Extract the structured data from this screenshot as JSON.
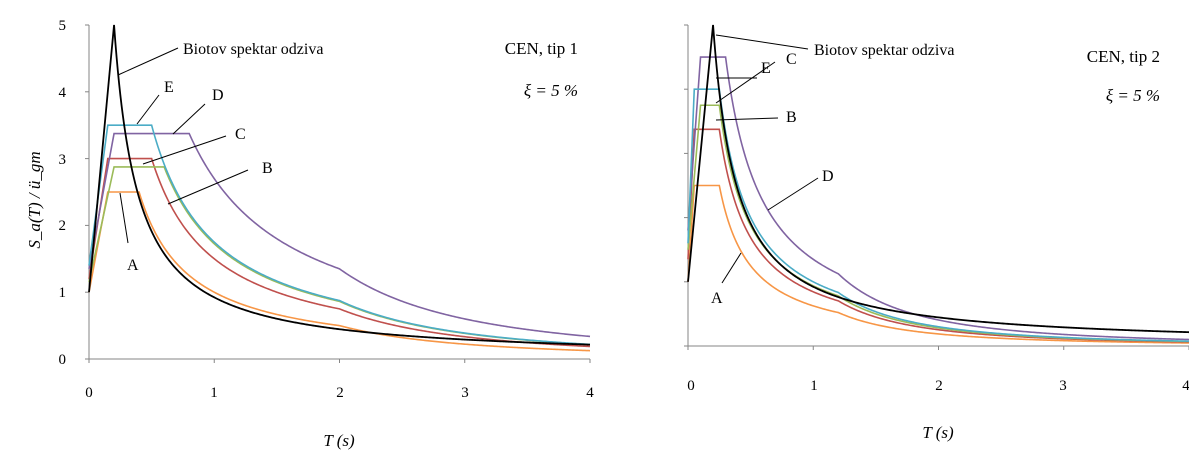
{
  "chart_data": [
    {
      "type": "line",
      "ylabel": "S_a(T) / ü_gm",
      "xlabel": "T (s)",
      "xlim": [
        0,
        4
      ],
      "ylim": [
        0,
        5
      ],
      "x_ticks": [
        "0",
        "1",
        "2",
        "3",
        "4"
      ],
      "y_ticks": [
        "0",
        "1",
        "2",
        "3",
        "4",
        "5"
      ],
      "grid": false,
      "info": [
        "CEN, tip 1",
        "ξ = 5 %"
      ],
      "series": [
        {
          "name": "A",
          "color": "#f79646",
          "plateau": 2.5,
          "S": 1.0,
          "TB": 0.15,
          "TC": 0.4,
          "TD": 2.0
        },
        {
          "name": "B",
          "color": "#c0504d",
          "plateau": 3.0,
          "S": 1.2,
          "TB": 0.15,
          "TC": 0.5,
          "TD": 2.0
        },
        {
          "name": "C",
          "color": "#9bbb59",
          "plateau": 2.875,
          "S": 1.15,
          "TB": 0.2,
          "TC": 0.6,
          "TD": 2.0
        },
        {
          "name": "D",
          "color": "#8064a2",
          "plateau": 3.375,
          "S": 1.35,
          "TB": 0.2,
          "TC": 0.8,
          "TD": 2.0
        },
        {
          "name": "E",
          "color": "#4bacc6",
          "plateau": 3.5,
          "S": 1.4,
          "TB": 0.15,
          "TC": 0.5,
          "TD": 2.0
        }
      ],
      "biot_curve": {
        "name": "Biotov spektar odziva",
        "color": "#000000",
        "peak_T": 0.2,
        "peak": 5.0
      },
      "annotations": [
        "Biotov spektar odziva",
        "A",
        "B",
        "C",
        "D",
        "E"
      ]
    },
    {
      "type": "line",
      "xlabel": "T (s)",
      "xlim": [
        0,
        4
      ],
      "ylim": [
        0,
        5
      ],
      "x_ticks": [
        "0",
        "1",
        "2",
        "3",
        "4"
      ],
      "grid": false,
      "info": [
        "CEN, tip 2",
        "ξ = 5 %"
      ],
      "series": [
        {
          "name": "A",
          "color": "#f79646",
          "plateau": 2.5,
          "S": 1.0,
          "TB": 0.05,
          "TC": 0.25,
          "TD": 1.2
        },
        {
          "name": "B",
          "color": "#c0504d",
          "plateau": 3.375,
          "S": 1.35,
          "TB": 0.05,
          "TC": 0.25,
          "TD": 1.2
        },
        {
          "name": "C",
          "color": "#9bbb59",
          "plateau": 3.75,
          "S": 1.5,
          "TB": 0.1,
          "TC": 0.25,
          "TD": 1.2
        },
        {
          "name": "D",
          "color": "#8064a2",
          "plateau": 4.5,
          "S": 1.8,
          "TB": 0.1,
          "TC": 0.3,
          "TD": 1.2
        },
        {
          "name": "E",
          "color": "#4bacc6",
          "plateau": 4.0,
          "S": 1.6,
          "TB": 0.05,
          "TC": 0.25,
          "TD": 1.2
        }
      ],
      "biot_curve": {
        "name": "Biotov spektar odziva",
        "color": "#000000",
        "peak_T": 0.2,
        "peak": 5.0
      },
      "annotations": [
        "Biotov spektar odziva",
        "A",
        "B",
        "C",
        "D",
        "E"
      ]
    }
  ]
}
